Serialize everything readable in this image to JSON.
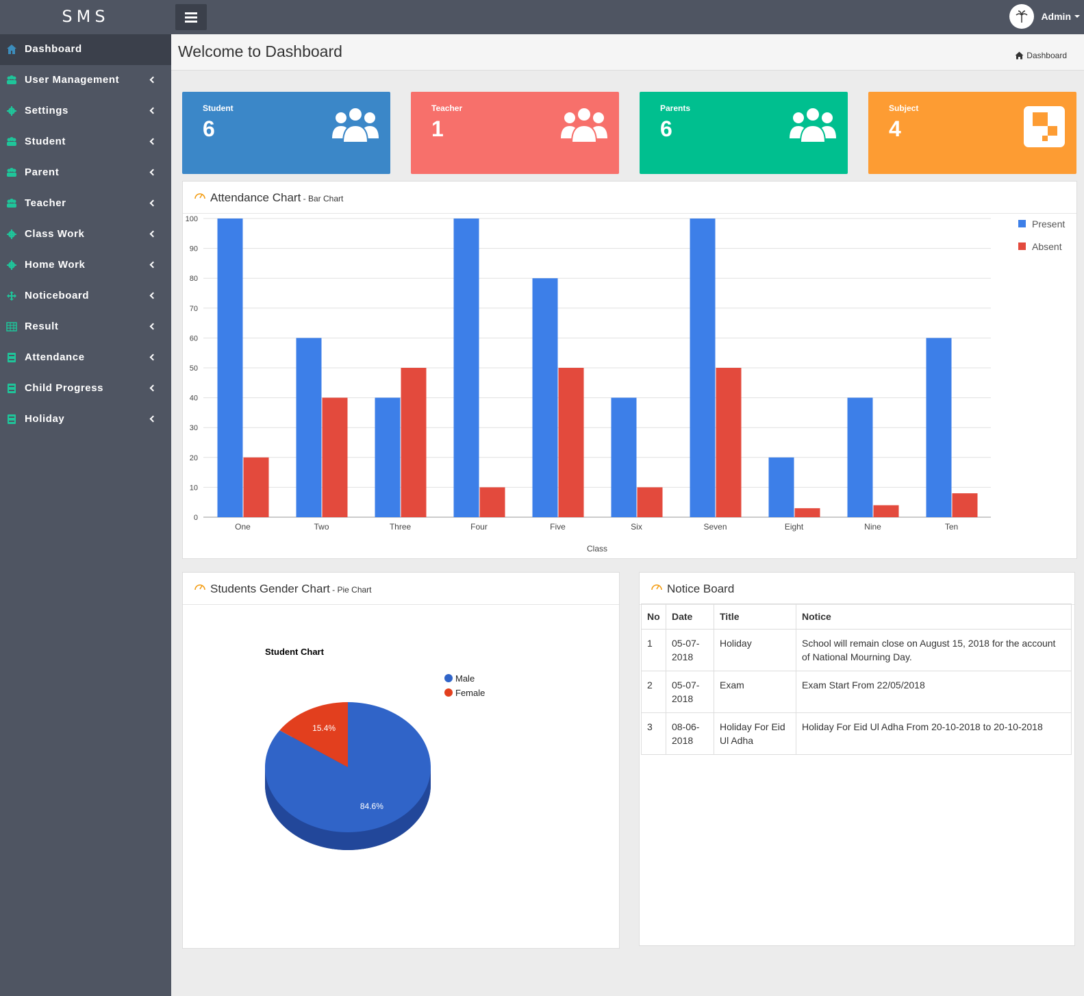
{
  "app": {
    "brand": "SMS",
    "user": "Admin"
  },
  "header": {
    "title": "Welcome to Dashboard",
    "breadcrumb": "Dashboard"
  },
  "sidebar": {
    "items": [
      {
        "label": "Dashboard",
        "icon": "home-icon",
        "active": true
      },
      {
        "label": "User Management",
        "icon": "users-icon"
      },
      {
        "label": "Settings",
        "icon": "gear-icon"
      },
      {
        "label": "Student",
        "icon": "users-icon"
      },
      {
        "label": "Parent",
        "icon": "users-icon"
      },
      {
        "label": "Teacher",
        "icon": "users-icon"
      },
      {
        "label": "Class Work",
        "icon": "gear-icon"
      },
      {
        "label": "Home Work",
        "icon": "gear-icon"
      },
      {
        "label": "Noticeboard",
        "icon": "arrows-icon"
      },
      {
        "label": "Result",
        "icon": "table-icon"
      },
      {
        "label": "Attendance",
        "icon": "book-icon"
      },
      {
        "label": "Child Progress",
        "icon": "book-icon"
      },
      {
        "label": "Holiday",
        "icon": "book-icon"
      }
    ]
  },
  "stats": [
    {
      "label": "Student",
      "value": "6",
      "color": "#3b87c8",
      "icon": "group-icon"
    },
    {
      "label": "Teacher",
      "value": "1",
      "color": "#f7706b",
      "icon": "group-icon"
    },
    {
      "label": "Parents",
      "value": "6",
      "color": "#00bf8f",
      "icon": "group-icon"
    },
    {
      "label": "Subject",
      "value": "4",
      "color": "#fd9c33",
      "icon": "puzzle-icon"
    }
  ],
  "attendance": {
    "title": "Attendance Chart",
    "subtitle": " - Bar Chart"
  },
  "gender": {
    "title": "Students Gender Chart",
    "subtitle": " - Pie Chart"
  },
  "notice": {
    "title": "Notice Board",
    "columns": [
      "No",
      "Date",
      "Title",
      "Notice"
    ],
    "rows": [
      {
        "no": "1",
        "date": "05-07-2018",
        "title": "Holiday",
        "notice": "School will remain close on August 15, 2018 for the account of National Mourning Day."
      },
      {
        "no": "2",
        "date": "05-07-2018",
        "title": "Exam",
        "notice": "Exam Start From 22/05/2018"
      },
      {
        "no": "3",
        "date": "08-06-2018",
        "title": "Holiday For Eid Ul Adha",
        "notice": "Holiday For Eid Ul Adha From 20-10-2018 to 20-10-2018"
      }
    ]
  },
  "chart_data": [
    {
      "type": "bar",
      "categories": [
        "One",
        "Two",
        "Three",
        "Four",
        "Five",
        "Six",
        "Seven",
        "Eight",
        "Nine",
        "Ten"
      ],
      "series": [
        {
          "name": "Present",
          "color": "#3d7fe8",
          "values": [
            100,
            60,
            40,
            100,
            80,
            40,
            100,
            20,
            40,
            60
          ]
        },
        {
          "name": "Absent",
          "color": "#e34a3d",
          "values": [
            20,
            40,
            50,
            10,
            50,
            10,
            50,
            3,
            4,
            8
          ]
        }
      ],
      "xlabel": "Class",
      "ylabel": "",
      "ylim": [
        0,
        100
      ],
      "yticks": [
        0,
        10,
        20,
        30,
        40,
        50,
        60,
        70,
        80,
        90,
        100
      ],
      "grid": true,
      "legend": "top-right"
    },
    {
      "type": "pie",
      "title": "Student Chart",
      "labels": [
        "Male",
        "Female"
      ],
      "values": [
        84.6,
        15.4
      ],
      "value_labels": [
        "84.6%",
        "15.4%"
      ],
      "colors": [
        "#3064c8",
        "#e23f1e"
      ],
      "legend": "top-right"
    }
  ]
}
